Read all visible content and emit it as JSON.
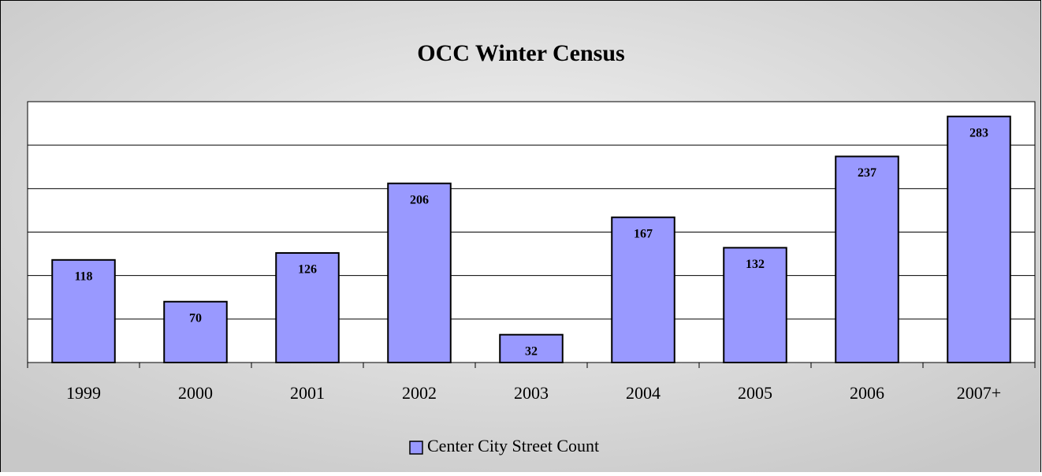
{
  "chart_data": {
    "type": "bar",
    "title": "OCC Winter Census",
    "categories": [
      "1999",
      "2000",
      "2001",
      "2002",
      "2003",
      "2004",
      "2005",
      "2006",
      "2007+"
    ],
    "series": [
      {
        "name": "Center City Street Count",
        "color": "#9999ff",
        "values": [
          118,
          70,
          126,
          206,
          32,
          167,
          132,
          237,
          283
        ]
      }
    ],
    "ylim": [
      0,
      300
    ],
    "yticks": [
      0,
      50,
      100,
      150,
      200,
      250,
      300
    ],
    "grid": true,
    "legend": "bottom"
  }
}
